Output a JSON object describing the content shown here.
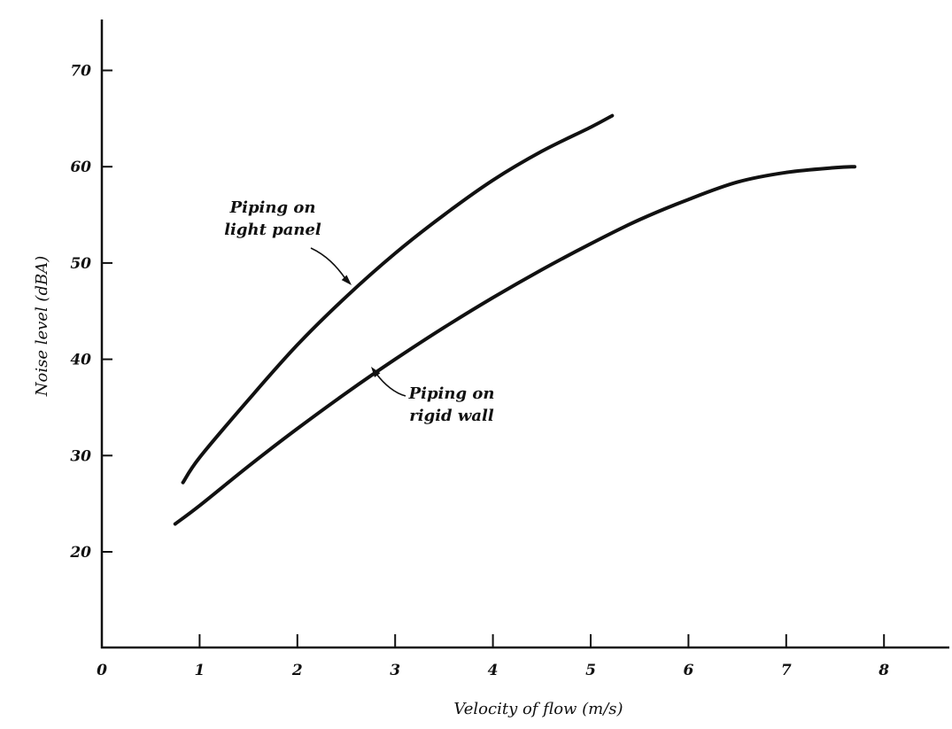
{
  "chart_data": {
    "type": "line",
    "xlabel": "Velocity of flow (m/s)",
    "ylabel": "Noise level (dBA)",
    "xlim": [
      0,
      8.7
    ],
    "ylim": [
      10,
      75
    ],
    "x_ticks": [
      0,
      1,
      2,
      3,
      4,
      5,
      6,
      7,
      8
    ],
    "x_tick_labels": [
      "0",
      "1",
      "2",
      "3",
      "4",
      "5",
      "6",
      "7",
      "8"
    ],
    "y_ticks": [
      20,
      30,
      40,
      50,
      60,
      70
    ],
    "y_tick_labels": [
      "20",
      "30",
      "40",
      "50",
      "60",
      "70"
    ],
    "grid": false,
    "series": [
      {
        "name": "Piping on light panel",
        "x": [
          0.83,
          1.0,
          1.5,
          2.0,
          2.5,
          3.0,
          3.5,
          4.0,
          4.5,
          5.0,
          5.22
        ],
        "y": [
          27.2,
          29.8,
          35.8,
          41.5,
          46.5,
          51.0,
          55.0,
          58.6,
          61.6,
          64.1,
          65.3
        ],
        "color": "#111111"
      },
      {
        "name": "Piping on rigid wall",
        "x": [
          0.75,
          1.0,
          1.5,
          2.0,
          2.5,
          3.0,
          3.5,
          4.0,
          4.5,
          5.0,
          5.5,
          6.0,
          6.5,
          7.0,
          7.5,
          7.7
        ],
        "y": [
          22.9,
          24.8,
          28.9,
          32.8,
          36.5,
          40.0,
          43.3,
          46.4,
          49.3,
          52.0,
          54.5,
          56.6,
          58.4,
          59.4,
          59.9,
          60.0
        ],
        "color": "#111111"
      }
    ],
    "annotations": [
      {
        "lines": [
          "Piping on",
          "light panel"
        ],
        "series": 0
      },
      {
        "lines": [
          "Piping on",
          "rigid wall"
        ],
        "series": 1
      }
    ]
  }
}
